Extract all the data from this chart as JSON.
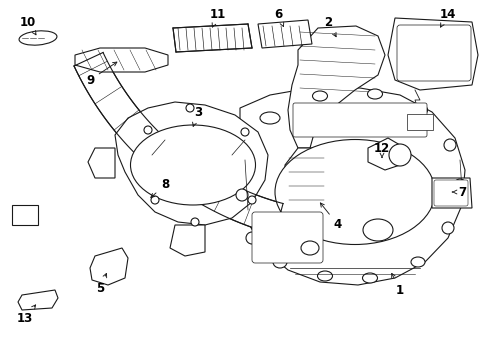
{
  "bg_color": "#ffffff",
  "line_color": "#1a1a1a",
  "text_color": "#000000",
  "figsize": [
    4.9,
    3.6
  ],
  "dpi": 100,
  "lw": 0.8
}
